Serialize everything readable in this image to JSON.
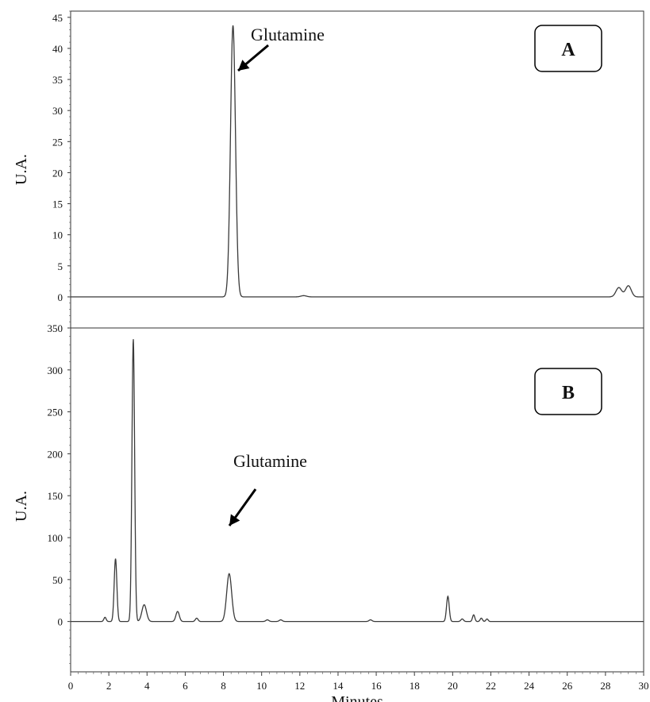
{
  "chart_data": [
    {
      "panel": "A",
      "type": "line",
      "title": "",
      "xlabel": "",
      "ylabel": "U.A.",
      "xlim": [
        0,
        30
      ],
      "ylim": [
        -5,
        46
      ],
      "yticks": [
        0,
        5,
        10,
        15,
        20,
        25,
        30,
        35,
        40,
        45
      ],
      "grid": false,
      "panel_label": "A",
      "annotation": {
        "text": "Glutamine",
        "x": 8.5,
        "y": 37
      },
      "peaks": [
        {
          "x": 8.5,
          "height": 43.7,
          "width": 0.13
        },
        {
          "x": 12.2,
          "height": 0.2,
          "width": 0.15
        },
        {
          "x": 28.7,
          "height": 1.5,
          "width": 0.15
        },
        {
          "x": 29.2,
          "height": 1.8,
          "width": 0.15
        }
      ]
    },
    {
      "panel": "B",
      "type": "line",
      "title": "",
      "xlabel": "Minutes",
      "ylabel": "U.A.",
      "xlim": [
        0,
        30
      ],
      "ylim": [
        -60,
        350
      ],
      "xticks": [
        0,
        2,
        4,
        6,
        8,
        10,
        12,
        14,
        16,
        18,
        20,
        22,
        24,
        26,
        28,
        30
      ],
      "yticks": [
        0,
        50,
        100,
        150,
        200,
        250,
        300,
        350
      ],
      "grid": false,
      "panel_label": "B",
      "annotation": {
        "text": "Glutamine",
        "x": 8.3,
        "y": 60
      },
      "peaks": [
        {
          "x": 1.8,
          "height": 5,
          "width": 0.06
        },
        {
          "x": 2.35,
          "height": 75,
          "width": 0.07
        },
        {
          "x": 3.28,
          "height": 337,
          "width": 0.07
        },
        {
          "x": 3.85,
          "height": 20,
          "width": 0.12
        },
        {
          "x": 5.6,
          "height": 12,
          "width": 0.09
        },
        {
          "x": 6.6,
          "height": 4,
          "width": 0.07
        },
        {
          "x": 8.3,
          "height": 57,
          "width": 0.13
        },
        {
          "x": 10.3,
          "height": 2,
          "width": 0.08
        },
        {
          "x": 11.0,
          "height": 2,
          "width": 0.08
        },
        {
          "x": 15.7,
          "height": 2,
          "width": 0.08
        },
        {
          "x": 19.75,
          "height": 30,
          "width": 0.07
        },
        {
          "x": 20.5,
          "height": 3,
          "width": 0.07
        },
        {
          "x": 21.1,
          "height": 8,
          "width": 0.06
        },
        {
          "x": 21.5,
          "height": 4,
          "width": 0.06
        },
        {
          "x": 21.8,
          "height": 3,
          "width": 0.06
        }
      ]
    }
  ]
}
